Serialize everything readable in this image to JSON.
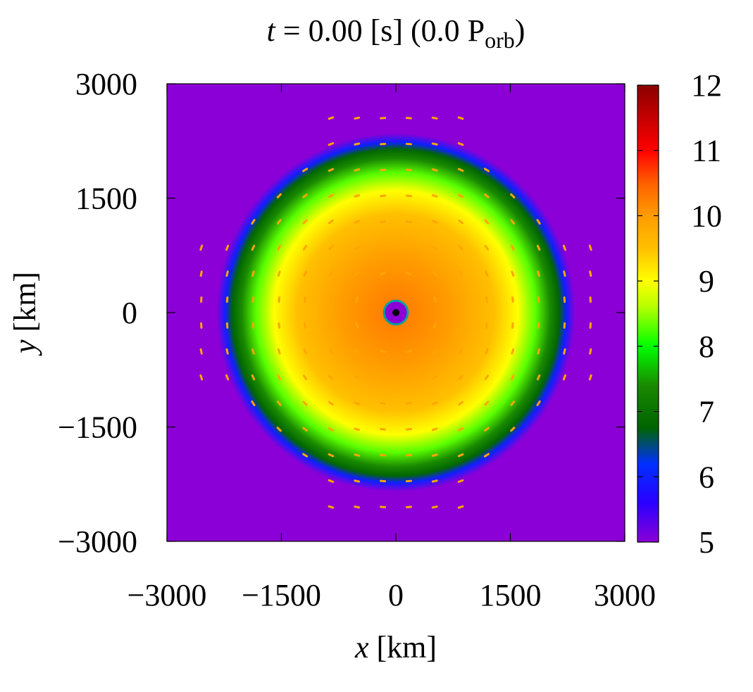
{
  "chart_data": {
    "type": "heatmap",
    "title": {
      "var": "t",
      "main": " = 0.00 [s] (0.0 P",
      "sub": "orb",
      "close": ")"
    },
    "xlabel": {
      "var": "x",
      "unit": " [km]"
    },
    "ylabel": {
      "var": "y",
      "unit": " [km]"
    },
    "xlim": [
      -3000,
      3000
    ],
    "ylim": [
      -3000,
      3000
    ],
    "xticks": [
      {
        "value": -3000,
        "label": "−3000"
      },
      {
        "value": -1500,
        "label": "−1500"
      },
      {
        "value": 0,
        "label": "0"
      },
      {
        "value": 1500,
        "label": "1500"
      },
      {
        "value": 3000,
        "label": "3000"
      }
    ],
    "yticks": [
      {
        "value": 3000,
        "label": "3000"
      },
      {
        "value": 1500,
        "label": "1500"
      },
      {
        "value": 0,
        "label": "0"
      },
      {
        "value": -1500,
        "label": "−1500"
      },
      {
        "value": -3000,
        "label": "−3000"
      }
    ],
    "colorbar": {
      "range": [
        5,
        12
      ],
      "ticks": [
        {
          "value": 12,
          "label": "12"
        },
        {
          "value": 11,
          "label": "11"
        },
        {
          "value": 10,
          "label": "10"
        },
        {
          "value": 9,
          "label": "9"
        },
        {
          "value": 8,
          "label": "8"
        },
        {
          "value": 7,
          "label": "7"
        },
        {
          "value": 6,
          "label": "6"
        },
        {
          "value": 5,
          "label": "5"
        }
      ],
      "palette": [
        {
          "value": 5.0,
          "color": "#8b00d6"
        },
        {
          "value": 5.6,
          "color": "#2a00ff"
        },
        {
          "value": 6.2,
          "color": "#0030ff"
        },
        {
          "value": 6.75,
          "color": "#006400"
        },
        {
          "value": 7.4,
          "color": "#1a8a00"
        },
        {
          "value": 8.0,
          "color": "#00ff00"
        },
        {
          "value": 8.6,
          "color": "#b4ff00"
        },
        {
          "value": 9.0,
          "color": "#ffff00"
        },
        {
          "value": 9.5,
          "color": "#ffc000"
        },
        {
          "value": 10.0,
          "color": "#ff9c00"
        },
        {
          "value": 10.5,
          "color": "#ff6000"
        },
        {
          "value": 11.0,
          "color": "#ff0000"
        },
        {
          "value": 12.0,
          "color": "#8b0000"
        }
      ]
    },
    "background_value": 5.0,
    "torus": {
      "outer_radius_km": 2350,
      "peak_value": 10.3,
      "central_object_radius_km": 170,
      "central_object_color": "#8b00d6",
      "central_object_ring_color": "#00a0a0",
      "central_dot_color": "#000000"
    },
    "vector_field": {
      "color": "#ffa500",
      "spacing_km": 340
    },
    "grid": false,
    "legend": "none"
  }
}
